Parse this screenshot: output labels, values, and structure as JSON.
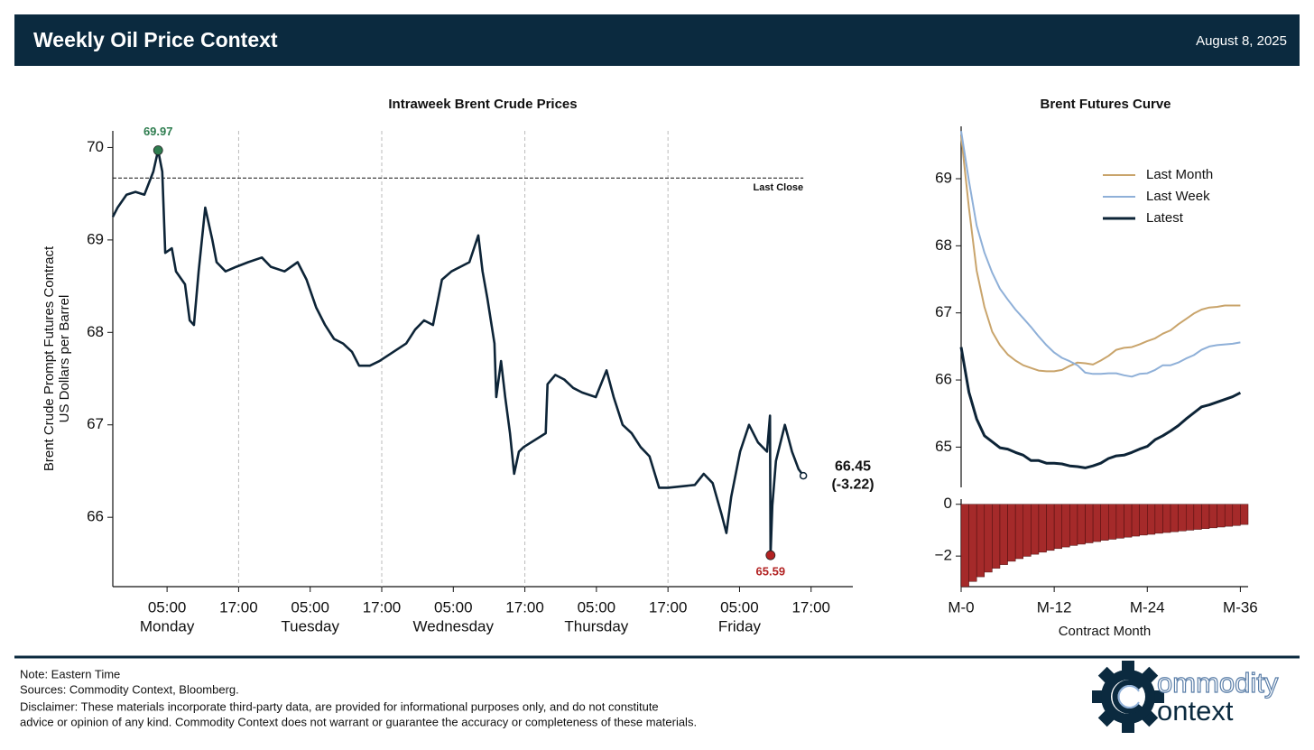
{
  "header": {
    "title": "Weekly Oil Price Context",
    "date": "August 8, 2025"
  },
  "chart_data": [
    {
      "type": "line",
      "title": "Intraweek Brent Crude Prices",
      "y_label": [
        "Brent Crude Prompt Futures Contract",
        "US Dollars per Barrel"
      ],
      "color": "#0d2437",
      "x": [
        -4.1,
        -3.3,
        -1.8,
        -0.3,
        1.2,
        2.7,
        3.5,
        4.2,
        4.7,
        5.8,
        6.5,
        8.0,
        8.8,
        9.5,
        10.3,
        11.4,
        12.6,
        13.3,
        14.8,
        16.6,
        18.6,
        20.9,
        22.4,
        24.7,
        26.9,
        28.4,
        30.0,
        31.5,
        33.0,
        34.5,
        36.0,
        37.2,
        39.0,
        40.6,
        45.1,
        46.6,
        48.1,
        49.6,
        51.1,
        52.7,
        54.2,
        55.7,
        57.2,
        57.9,
        58.7,
        59.9,
        60.2,
        61.0,
        61.7,
        62.5,
        63.2,
        64.0,
        64.8,
        68.5,
        68.8,
        70.1,
        71.6,
        73.1,
        74.6,
        76.9,
        78.7,
        79.9,
        81.4,
        82.9,
        84.4,
        85.9,
        87.5,
        89.0,
        93.5,
        95.0,
        96.5,
        98.0,
        98.8,
        99.6,
        101.1,
        102.6,
        104.1,
        105.6,
        106.1,
        106.2,
        106.5,
        107.1,
        108.6,
        109.8,
        110.9,
        111.7
      ],
      "values": [
        69.25,
        69.35,
        69.49,
        69.52,
        69.49,
        69.74,
        69.97,
        69.74,
        68.86,
        68.91,
        68.66,
        68.52,
        68.13,
        68.08,
        68.66,
        69.35,
        69.0,
        68.76,
        68.66,
        68.71,
        68.76,
        68.81,
        68.71,
        68.66,
        68.76,
        68.57,
        68.27,
        68.08,
        67.93,
        67.88,
        67.79,
        67.64,
        67.64,
        67.69,
        67.88,
        68.03,
        68.13,
        68.08,
        68.57,
        68.66,
        68.71,
        68.76,
        69.05,
        68.66,
        68.37,
        67.88,
        67.3,
        67.69,
        67.3,
        66.91,
        66.47,
        66.71,
        66.76,
        66.91,
        67.44,
        67.54,
        67.49,
        67.4,
        67.35,
        67.3,
        67.59,
        67.3,
        67.0,
        66.91,
        66.76,
        66.66,
        66.32,
        66.32,
        66.35,
        66.47,
        66.37,
        66.03,
        65.83,
        66.22,
        66.71,
        67.0,
        66.81,
        66.71,
        67.1,
        65.59,
        66.13,
        66.61,
        67.0,
        66.71,
        66.52,
        66.45
      ],
      "xlim": [
        -4.1,
        120
      ],
      "ylim": [
        65.25,
        70.18
      ],
      "yticks": [
        66,
        67,
        68,
        69,
        70
      ],
      "xticks": [
        {
          "value": 5,
          "label": "05:00",
          "day": "Monday"
        },
        {
          "value": 17,
          "label": "17:00"
        },
        {
          "value": 29,
          "label": "05:00",
          "day": "Tuesday"
        },
        {
          "value": 41,
          "label": "17:00"
        },
        {
          "value": 53,
          "label": "05:00",
          "day": "Wednesday"
        },
        {
          "value": 65,
          "label": "17:00"
        },
        {
          "value": 77,
          "label": "05:00",
          "day": "Thursday"
        },
        {
          "value": 89,
          "label": "17:00"
        },
        {
          "value": 101,
          "label": "05:00",
          "day": "Friday"
        },
        {
          "value": 113,
          "label": "17:00"
        }
      ],
      "xgrid": [
        17,
        41,
        65,
        89
      ],
      "reference": {
        "value": 69.67,
        "label": "Last Close"
      },
      "high": {
        "x": 3.5,
        "value": 69.97,
        "color": "#2e7d4f"
      },
      "low": {
        "x": 106.2,
        "value": 65.59,
        "color": "#b22222"
      },
      "last": {
        "x": 111.7,
        "value": 66.45,
        "change": {
          "value": -3.22,
          "label": "(-3.22)"
        }
      }
    },
    {
      "type": "line",
      "title": "Brent Futures Curve",
      "x": [
        0,
        1,
        2,
        3,
        4,
        5,
        6,
        7,
        8,
        9,
        10,
        11,
        12,
        13,
        14,
        15,
        16,
        17,
        18,
        19,
        20,
        21,
        22,
        23,
        24,
        25,
        26,
        27,
        28,
        29,
        30,
        31,
        32,
        33,
        34,
        35,
        36
      ],
      "series": [
        {
          "name": "Last Month",
          "color": "#c9a46b",
          "width": 2,
          "values": [
            69.64,
            68.57,
            67.63,
            67.09,
            66.72,
            66.52,
            66.38,
            66.29,
            66.22,
            66.18,
            66.14,
            66.13,
            66.13,
            66.15,
            66.21,
            66.26,
            66.25,
            66.23,
            66.29,
            66.36,
            66.45,
            66.48,
            66.49,
            66.53,
            66.58,
            66.62,
            66.69,
            66.74,
            66.83,
            66.91,
            66.99,
            67.05,
            67.08,
            67.09,
            67.11,
            67.11,
            67.11
          ]
        },
        {
          "name": "Last Week",
          "color": "#8fb0d8",
          "width": 2,
          "values": [
            69.71,
            68.97,
            68.3,
            67.9,
            67.6,
            67.36,
            67.2,
            67.05,
            66.92,
            66.79,
            66.65,
            66.52,
            66.41,
            66.33,
            66.28,
            66.22,
            66.11,
            66.09,
            66.09,
            66.1,
            66.1,
            66.07,
            66.05,
            66.09,
            66.1,
            66.15,
            66.22,
            66.22,
            66.26,
            66.32,
            66.37,
            66.45,
            66.5,
            66.52,
            66.53,
            66.54,
            66.56
          ]
        },
        {
          "name": "Latest",
          "color": "#0d2437",
          "width": 3,
          "values": [
            66.49,
            65.82,
            65.42,
            65.17,
            65.08,
            64.99,
            64.97,
            64.92,
            64.88,
            64.8,
            64.8,
            64.76,
            64.76,
            64.75,
            64.72,
            64.71,
            64.69,
            64.72,
            64.76,
            64.83,
            64.87,
            64.88,
            64.92,
            64.97,
            65.01,
            65.11,
            65.17,
            65.24,
            65.32,
            65.42,
            65.51,
            65.6,
            65.63,
            65.67,
            65.71,
            65.75,
            65.81
          ]
        }
      ],
      "xlim": [
        0,
        37
      ],
      "ylim": [
        64.4,
        69.78
      ],
      "yticks": [
        65,
        66,
        67,
        68,
        69
      ],
      "legend": "upper right"
    },
    {
      "type": "bar",
      "x": [
        0,
        1,
        2,
        3,
        4,
        5,
        6,
        7,
        8,
        9,
        10,
        11,
        12,
        13,
        14,
        15,
        16,
        17,
        18,
        19,
        20,
        21,
        22,
        23,
        24,
        25,
        26,
        27,
        28,
        29,
        30,
        31,
        32,
        33,
        34,
        35,
        36
      ],
      "values": [
        -3.18,
        -2.98,
        -2.8,
        -2.62,
        -2.47,
        -2.33,
        -2.2,
        -2.1,
        -2.01,
        -1.93,
        -1.85,
        -1.78,
        -1.71,
        -1.65,
        -1.59,
        -1.54,
        -1.49,
        -1.44,
        -1.39,
        -1.35,
        -1.31,
        -1.27,
        -1.23,
        -1.19,
        -1.16,
        -1.12,
        -1.09,
        -1.06,
        -1.03,
        -1.0,
        -0.97,
        -0.94,
        -0.91,
        -0.88,
        -0.85,
        -0.82,
        -0.78
      ],
      "color": "#a52a2a",
      "xlim": [
        0,
        37
      ],
      "ylim": [
        -3.18,
        0.2
      ],
      "yticks": [
        0,
        {
          "value": -2,
          "label": "−2"
        }
      ],
      "xticks": [
        {
          "value": 0,
          "label": "M-0"
        },
        {
          "value": 12,
          "label": "M-12"
        },
        {
          "value": 24,
          "label": "M-24"
        },
        {
          "value": 36,
          "label": "M-36"
        }
      ],
      "x_label": "Contract Month"
    }
  ],
  "footer": {
    "notes": [
      "Note: Eastern Time",
      "Sources: Commodity Context, Bloomberg.",
      "Disclaimer: These materials incorporate third-party data, are provided for informational purposes only, and do not constitute",
      "advice or opinion of any kind. Commodity Context does not warrant or guarantee the accuracy or completeness of these materials."
    ],
    "logo": {
      "line1": "ommodity",
      "line2": "ontext"
    }
  }
}
